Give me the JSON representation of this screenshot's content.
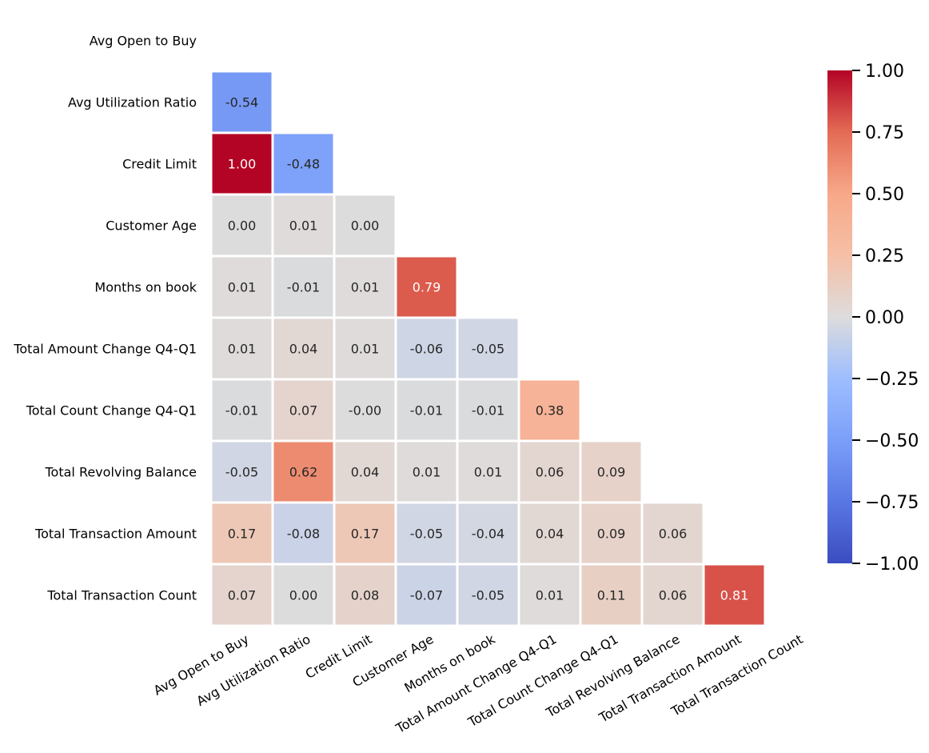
{
  "chart_data": {
    "type": "heatmap",
    "title": "",
    "xlabel": "",
    "ylabel": "",
    "variables": [
      "Avg Open to Buy",
      "Avg Utilization Ratio",
      "Credit Limit",
      "Customer Age",
      "Months on book",
      "Total Amount Change Q4-Q1",
      "Total Count Change Q4-Q1",
      "Total Revolving Balance",
      "Total Transaction Amount",
      "Total Transaction Count"
    ],
    "mask": "upper triangle including diagonal",
    "cells": [
      {
        "row": "Avg Utilization Ratio",
        "col": "Avg Open to Buy",
        "value": -0.54,
        "label": "-0.54"
      },
      {
        "row": "Credit Limit",
        "col": "Avg Open to Buy",
        "value": 1.0,
        "label": "1.00"
      },
      {
        "row": "Credit Limit",
        "col": "Avg Utilization Ratio",
        "value": -0.48,
        "label": "-0.48"
      },
      {
        "row": "Customer Age",
        "col": "Avg Open to Buy",
        "value": 0.0,
        "label": "0.00"
      },
      {
        "row": "Customer Age",
        "col": "Avg Utilization Ratio",
        "value": 0.01,
        "label": "0.01"
      },
      {
        "row": "Customer Age",
        "col": "Credit Limit",
        "value": 0.0,
        "label": "0.00"
      },
      {
        "row": "Months on book",
        "col": "Avg Open to Buy",
        "value": 0.01,
        "label": "0.01"
      },
      {
        "row": "Months on book",
        "col": "Avg Utilization Ratio",
        "value": -0.01,
        "label": "-0.01"
      },
      {
        "row": "Months on book",
        "col": "Credit Limit",
        "value": 0.01,
        "label": "0.01"
      },
      {
        "row": "Months on book",
        "col": "Customer Age",
        "value": 0.79,
        "label": "0.79"
      },
      {
        "row": "Total Amount Change Q4-Q1",
        "col": "Avg Open to Buy",
        "value": 0.01,
        "label": "0.01"
      },
      {
        "row": "Total Amount Change Q4-Q1",
        "col": "Avg Utilization Ratio",
        "value": 0.04,
        "label": "0.04"
      },
      {
        "row": "Total Amount Change Q4-Q1",
        "col": "Credit Limit",
        "value": 0.01,
        "label": "0.01"
      },
      {
        "row": "Total Amount Change Q4-Q1",
        "col": "Customer Age",
        "value": -0.06,
        "label": "-0.06"
      },
      {
        "row": "Total Amount Change Q4-Q1",
        "col": "Months on book",
        "value": -0.05,
        "label": "-0.05"
      },
      {
        "row": "Total Count Change Q4-Q1",
        "col": "Avg Open to Buy",
        "value": -0.01,
        "label": "-0.01"
      },
      {
        "row": "Total Count Change Q4-Q1",
        "col": "Avg Utilization Ratio",
        "value": 0.07,
        "label": "0.07"
      },
      {
        "row": "Total Count Change Q4-Q1",
        "col": "Credit Limit",
        "value": -0.0,
        "label": "-0.00"
      },
      {
        "row": "Total Count Change Q4-Q1",
        "col": "Customer Age",
        "value": -0.01,
        "label": "-0.01"
      },
      {
        "row": "Total Count Change Q4-Q1",
        "col": "Months on book",
        "value": -0.01,
        "label": "-0.01"
      },
      {
        "row": "Total Count Change Q4-Q1",
        "col": "Total Amount Change Q4-Q1",
        "value": 0.38,
        "label": "0.38"
      },
      {
        "row": "Total Revolving Balance",
        "col": "Avg Open to Buy",
        "value": -0.05,
        "label": "-0.05"
      },
      {
        "row": "Total Revolving Balance",
        "col": "Avg Utilization Ratio",
        "value": 0.62,
        "label": "0.62"
      },
      {
        "row": "Total Revolving Balance",
        "col": "Credit Limit",
        "value": 0.04,
        "label": "0.04"
      },
      {
        "row": "Total Revolving Balance",
        "col": "Customer Age",
        "value": 0.01,
        "label": "0.01"
      },
      {
        "row": "Total Revolving Balance",
        "col": "Months on book",
        "value": 0.01,
        "label": "0.01"
      },
      {
        "row": "Total Revolving Balance",
        "col": "Total Amount Change Q4-Q1",
        "value": 0.06,
        "label": "0.06"
      },
      {
        "row": "Total Revolving Balance",
        "col": "Total Count Change Q4-Q1",
        "value": 0.09,
        "label": "0.09"
      },
      {
        "row": "Total Transaction Amount",
        "col": "Avg Open to Buy",
        "value": 0.17,
        "label": "0.17"
      },
      {
        "row": "Total Transaction Amount",
        "col": "Avg Utilization Ratio",
        "value": -0.08,
        "label": "-0.08"
      },
      {
        "row": "Total Transaction Amount",
        "col": "Credit Limit",
        "value": 0.17,
        "label": "0.17"
      },
      {
        "row": "Total Transaction Amount",
        "col": "Customer Age",
        "value": -0.05,
        "label": "-0.05"
      },
      {
        "row": "Total Transaction Amount",
        "col": "Months on book",
        "value": -0.04,
        "label": "-0.04"
      },
      {
        "row": "Total Transaction Amount",
        "col": "Total Amount Change Q4-Q1",
        "value": 0.04,
        "label": "0.04"
      },
      {
        "row": "Total Transaction Amount",
        "col": "Total Count Change Q4-Q1",
        "value": 0.09,
        "label": "0.09"
      },
      {
        "row": "Total Transaction Amount",
        "col": "Total Revolving Balance",
        "value": 0.06,
        "label": "0.06"
      },
      {
        "row": "Total Transaction Count",
        "col": "Avg Open to Buy",
        "value": 0.07,
        "label": "0.07"
      },
      {
        "row": "Total Transaction Count",
        "col": "Avg Utilization Ratio",
        "value": 0.0,
        "label": "0.00"
      },
      {
        "row": "Total Transaction Count",
        "col": "Credit Limit",
        "value": 0.08,
        "label": "0.08"
      },
      {
        "row": "Total Transaction Count",
        "col": "Customer Age",
        "value": -0.07,
        "label": "-0.07"
      },
      {
        "row": "Total Transaction Count",
        "col": "Months on book",
        "value": -0.05,
        "label": "-0.05"
      },
      {
        "row": "Total Transaction Count",
        "col": "Total Amount Change Q4-Q1",
        "value": 0.01,
        "label": "0.01"
      },
      {
        "row": "Total Transaction Count",
        "col": "Total Count Change Q4-Q1",
        "value": 0.11,
        "label": "0.11"
      },
      {
        "row": "Total Transaction Count",
        "col": "Total Revolving Balance",
        "value": 0.06,
        "label": "0.06"
      },
      {
        "row": "Total Transaction Count",
        "col": "Total Transaction Amount",
        "value": 0.81,
        "label": "0.81"
      }
    ],
    "colorbar": {
      "colormap": "coolwarm",
      "range": [
        -1,
        1
      ],
      "ticks": [
        1.0,
        0.75,
        0.5,
        0.25,
        0.0,
        -0.25,
        -0.5,
        -0.75,
        -1.0
      ],
      "tick_labels": [
        "1.00",
        "0.75",
        "0.50",
        "0.25",
        "0.00",
        "−0.25",
        "−0.50",
        "−0.75",
        "−1.00"
      ],
      "placement": "right"
    },
    "grid_line_color": "#ffffff"
  }
}
